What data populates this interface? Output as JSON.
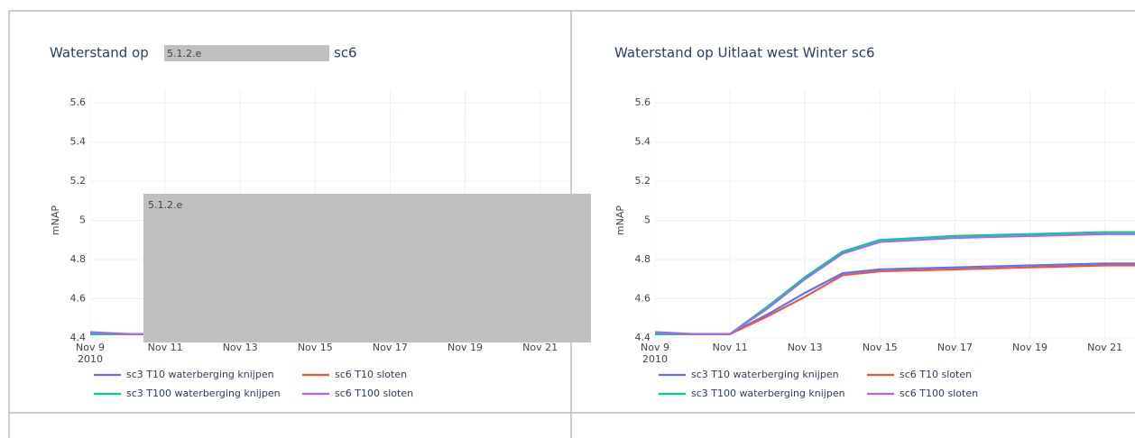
{
  "chart_data": [
    {
      "type": "line",
      "title": "Waterstand op",
      "title_redaction": "5.1.2.e",
      "title_suffix": "sc6",
      "redaction": "5.1.2.e",
      "y_label": "mNAP",
      "xlim": [
        "2010-11-09",
        "2010-11-22"
      ],
      "xticks": [
        {
          "value": "2010-11-09",
          "label": "Nov 9"
        },
        {
          "value": "2010-11-11",
          "label": "Nov 11"
        },
        {
          "value": "2010-11-13",
          "label": "Nov 13"
        },
        {
          "value": "2010-11-15",
          "label": "Nov 15"
        },
        {
          "value": "2010-11-17",
          "label": "Nov 17"
        },
        {
          "value": "2010-11-19",
          "label": "Nov 19"
        },
        {
          "value": "2010-11-21",
          "label": "Nov 21"
        }
      ],
      "x_year_label": "2010",
      "ylim": [
        4.4,
        5.6
      ],
      "yticks": [
        4.4,
        4.6,
        4.8,
        5,
        5.2,
        5.4,
        5.6
      ],
      "grid": true,
      "x": [
        "2010-11-09",
        "2010-11-10",
        "2010-11-11"
      ],
      "series": [
        {
          "name": "sc3 T10 waterberging knijpen",
          "color": "#636efa",
          "values": [
            4.42,
            4.42,
            4.42
          ]
        },
        {
          "name": "sc6 T10 sloten",
          "color": "#ef553b",
          "values": [
            4.42,
            4.42,
            4.42
          ]
        },
        {
          "name": "sc3 T100 waterberging knijpen",
          "color": "#00cc96",
          "values": [
            4.42,
            4.42,
            4.42
          ]
        },
        {
          "name": "sc6 T100 sloten",
          "color": "#ab63fa",
          "values": [
            4.43,
            4.42,
            4.42
          ]
        }
      ]
    },
    {
      "type": "line",
      "title": "Waterstand op Uitlaat west Winter sc6",
      "y_label": "mNAP",
      "xlim": [
        "2010-11-09",
        "2010-11-22"
      ],
      "xticks": [
        {
          "value": "2010-11-09",
          "label": "Nov 9"
        },
        {
          "value": "2010-11-11",
          "label": "Nov 11"
        },
        {
          "value": "2010-11-13",
          "label": "Nov 13"
        },
        {
          "value": "2010-11-15",
          "label": "Nov 15"
        },
        {
          "value": "2010-11-17",
          "label": "Nov 17"
        },
        {
          "value": "2010-11-19",
          "label": "Nov 19"
        },
        {
          "value": "2010-11-21",
          "label": "Nov 21"
        }
      ],
      "x_year_label": "2010",
      "ylim": [
        4.4,
        5.6
      ],
      "yticks": [
        4.4,
        4.6,
        4.8,
        5,
        5.2,
        5.4,
        5.6
      ],
      "grid": true,
      "x": [
        "2010-11-09",
        "2010-11-10",
        "2010-11-11",
        "2010-11-12",
        "2010-11-13",
        "2010-11-14",
        "2010-11-15",
        "2010-11-17",
        "2010-11-19",
        "2010-11-21",
        "2010-11-22"
      ],
      "series": [
        {
          "name": "sc3 T10 waterberging knijpen",
          "color": "#636efa",
          "values": [
            4.42,
            4.42,
            4.42,
            4.52,
            4.63,
            4.73,
            4.75,
            4.76,
            4.77,
            4.78,
            4.78
          ]
        },
        {
          "name": "sc6 T10 sloten",
          "color": "#ef553b",
          "values": [
            4.42,
            4.42,
            4.42,
            4.51,
            4.61,
            4.72,
            4.74,
            4.75,
            4.76,
            4.77,
            4.77
          ]
        },
        {
          "name": "sc3 T100 waterberging knijpen",
          "color": "#00cc96",
          "values": [
            4.42,
            4.42,
            4.42,
            4.56,
            4.71,
            4.84,
            4.9,
            4.92,
            4.93,
            4.94,
            4.94
          ]
        },
        {
          "name": "sc6 T100 sloten",
          "color": "#ab63fa",
          "values": [
            4.43,
            4.42,
            4.42,
            4.55,
            4.7,
            4.83,
            4.89,
            4.91,
            4.92,
            4.93,
            4.93
          ]
        }
      ]
    }
  ]
}
